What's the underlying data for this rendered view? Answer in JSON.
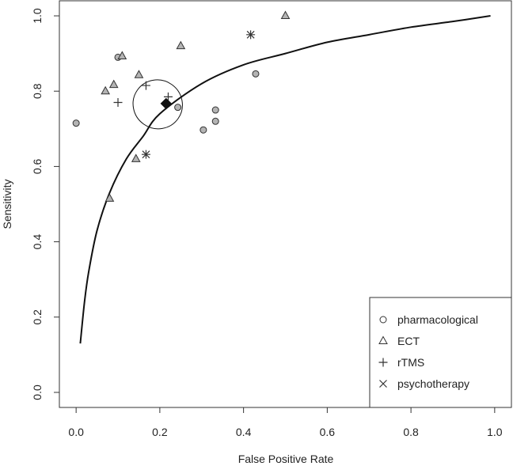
{
  "chart_data": {
    "type": "scatter",
    "title": "",
    "xlabel": "False Positive Rate",
    "ylabel": "Sensitivity",
    "xlim": [
      -0.04,
      1.04
    ],
    "ylim": [
      -0.04,
      1.04
    ],
    "x_ticks": [
      0.0,
      0.2,
      0.4,
      0.6,
      0.8,
      1.0
    ],
    "y_ticks": [
      0.0,
      0.2,
      0.4,
      0.6,
      0.8,
      1.0
    ],
    "x_tick_labels": [
      "0.0",
      "0.2",
      "0.4",
      "0.6",
      "0.8",
      "1.0"
    ],
    "y_tick_labels": [
      "0.0",
      "0.2",
      "0.4",
      "0.6",
      "0.8",
      "1.0"
    ],
    "grid": false,
    "legend_position": "bottom-right",
    "colors": {
      "marker_fill": "#b4b4b4",
      "marker_stroke": "#333333",
      "curve": "#111111",
      "summary": "#111111"
    },
    "series": [
      {
        "name": "pharmacological",
        "marker": "circle",
        "points": [
          [
            0.0,
            0.715
          ],
          [
            0.1,
            0.89
          ],
          [
            0.243,
            0.757
          ],
          [
            0.304,
            0.697
          ],
          [
            0.333,
            0.75
          ],
          [
            0.333,
            0.72
          ],
          [
            0.429,
            0.846
          ]
        ]
      },
      {
        "name": "ECT",
        "marker": "triangle",
        "points": [
          [
            0.07,
            0.8
          ],
          [
            0.09,
            0.817
          ],
          [
            0.11,
            0.893
          ],
          [
            0.15,
            0.843
          ],
          [
            0.25,
            0.92
          ],
          [
            0.5,
            1.0
          ],
          [
            0.08,
            0.515
          ],
          [
            0.143,
            0.62
          ]
        ]
      },
      {
        "name": "rTMS",
        "marker": "plus",
        "points": [
          [
            0.1,
            0.77
          ],
          [
            0.167,
            0.815
          ],
          [
            0.22,
            0.785
          ]
        ]
      },
      {
        "name": "psychotherapy",
        "marker": "cross",
        "points": [
          [
            0.417,
            0.95
          ],
          [
            0.167,
            0.632
          ]
        ]
      }
    ],
    "sroc_curve": [
      [
        0.01,
        0.13
      ],
      [
        0.02,
        0.24
      ],
      [
        0.03,
        0.32
      ],
      [
        0.05,
        0.43
      ],
      [
        0.08,
        0.53
      ],
      [
        0.12,
        0.62
      ],
      [
        0.16,
        0.68
      ],
      [
        0.2,
        0.74
      ],
      [
        0.3,
        0.82
      ],
      [
        0.4,
        0.87
      ],
      [
        0.5,
        0.9
      ],
      [
        0.6,
        0.93
      ],
      [
        0.7,
        0.95
      ],
      [
        0.8,
        0.97
      ],
      [
        0.9,
        0.985
      ],
      [
        0.99,
        1.0
      ]
    ],
    "summary_point": [
      0.215,
      0.767
    ],
    "confidence_region": {
      "center": [
        0.195,
        0.765
      ],
      "rx": 0.058,
      "ry": 0.066,
      "rotation_deg": -55
    }
  }
}
